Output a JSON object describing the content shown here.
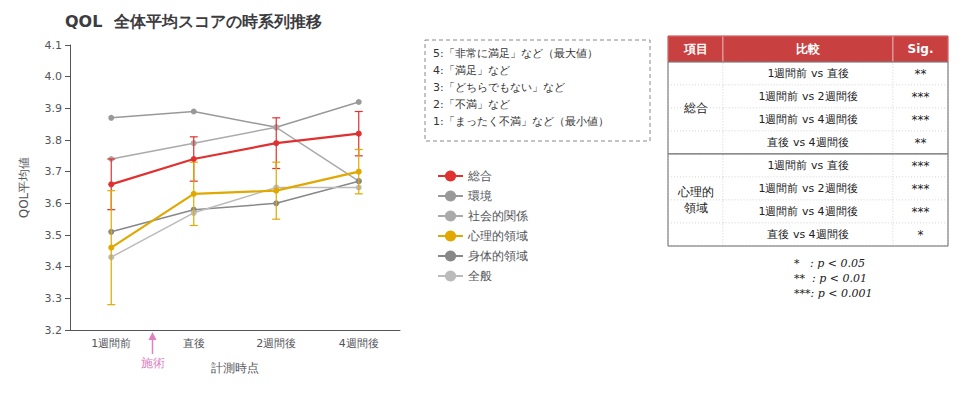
{
  "chart_data": {
    "type": "line",
    "title": "QOL  全体平均スコアの時系列推移",
    "categories": [
      "1週間前",
      "直後",
      "2週間後",
      "4週間後"
    ],
    "xlabel": "計測時点",
    "ylabel": "QOL平均値",
    "ylim": [
      3.2,
      4.1
    ],
    "yticks": [
      3.2,
      3.3,
      3.4,
      3.5,
      3.6,
      3.7,
      3.8,
      3.9,
      {
        "value": 4,
        "label": "4.0"
      },
      4.1
    ],
    "grid": false,
    "legend": "right",
    "marker": "circle",
    "series": [
      {
        "name": "総合",
        "color": "#e03030",
        "values": [
          3.66,
          3.74,
          3.79,
          3.82
        ],
        "errors": [
          0.08,
          0.07,
          0.08,
          0.07
        ]
      },
      {
        "name": "環境",
        "color": "#999999",
        "values": [
          3.87,
          3.89,
          3.84,
          3.92
        ]
      },
      {
        "name": "社会的関係",
        "color": "#aaaaaa",
        "values": [
          3.74,
          3.79,
          3.84,
          3.67
        ]
      },
      {
        "name": "心理的領域",
        "color": "#e0a800",
        "values": [
          3.46,
          3.63,
          3.64,
          3.7
        ],
        "errors": [
          0.18,
          0.1,
          0.09,
          0.07
        ]
      },
      {
        "name": "身体的領域",
        "color": "#888888",
        "values": [
          3.51,
          3.58,
          3.6,
          3.67
        ]
      },
      {
        "name": "全般",
        "color": "#bbbbbb",
        "values": [
          3.43,
          3.57,
          3.65,
          3.65
        ]
      }
    ],
    "annotations": [
      {
        "text": "施術",
        "color": "#e080c0"
      }
    ],
    "note_lines": [
      "5:「非常に満足」など（最大値）",
      "4:「満足」など",
      "3:「どちらでもない」など",
      "2:「不満」など",
      "1:「まったく不満」など（最小値）"
    ],
    "table": {
      "columns": [
        "項目",
        "比較",
        "Sig."
      ],
      "header_color": "#c84040",
      "header_text_color": "#ffffff",
      "groups": [
        {
          "item": "総合",
          "rows": [
            [
              "1週間前 vs 直後",
              "**"
            ],
            [
              "1週間前 vs 2週間後",
              "***"
            ],
            [
              "1週間前 vs 4週間後",
              "***"
            ],
            [
              "直後 vs 4週間後",
              "**"
            ]
          ]
        },
        {
          "item": "心理的\n領域",
          "rows": [
            [
              "1週間前 vs 直後",
              "***"
            ],
            [
              "1週間前 vs 2週間後",
              "***"
            ],
            [
              "1週間前 vs 4週間後",
              "***"
            ],
            [
              "直後 vs 4週間後",
              "*"
            ]
          ]
        }
      ],
      "footnote_lines": [
        "*   : p < 0.05",
        "**  : p < 0.01",
        "***: p < 0.001"
      ]
    }
  }
}
